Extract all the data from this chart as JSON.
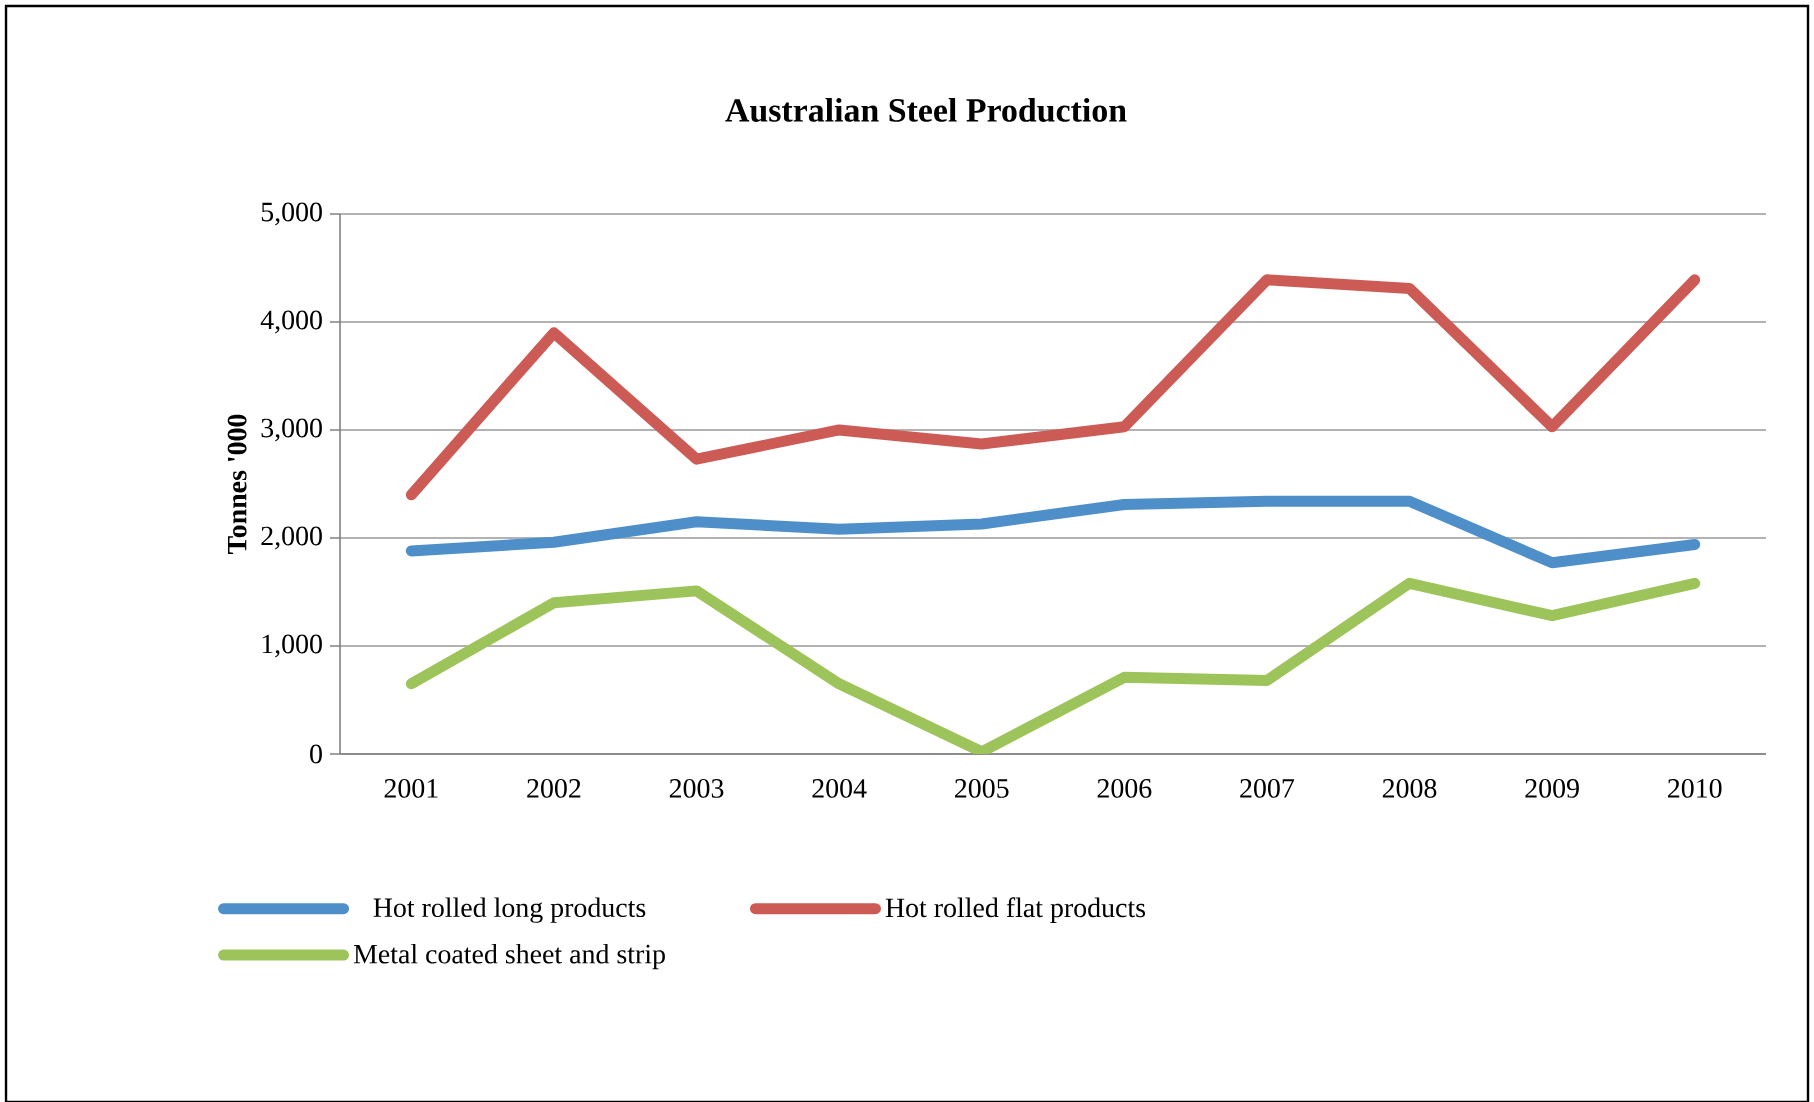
{
  "chart_data": {
    "type": "line",
    "title": "Australian Steel Production",
    "ylabel": "Tonnes '000",
    "categories": [
      "2001",
      "2002",
      "2003",
      "2004",
      "2005",
      "2006",
      "2007",
      "2008",
      "2009",
      "2010"
    ],
    "series": [
      {
        "name": "Hot rolled long products",
        "color": "#4f8fc9",
        "values": [
          1880,
          1960,
          2150,
          2080,
          2130,
          2310,
          2340,
          2340,
          1770,
          1940
        ]
      },
      {
        "name": "Hot rolled flat products",
        "color": "#cd5b55",
        "values": [
          2400,
          3900,
          2730,
          3000,
          2870,
          3030,
          4390,
          4310,
          3030,
          4390
        ]
      },
      {
        "name": "Metal coated sheet and strip",
        "color": "#9dc45a",
        "values": [
          650,
          1400,
          1510,
          650,
          20,
          710,
          680,
          1580,
          1280,
          1580
        ]
      }
    ],
    "ylim": [
      0,
      5000
    ],
    "yticks": [
      0,
      {
        "value": 1000,
        "label": "1,000"
      },
      {
        "value": 2000,
        "label": "2,000"
      },
      {
        "value": 3000,
        "label": "3,000"
      },
      {
        "value": 4000,
        "label": "4,000"
      },
      {
        "value": 5000,
        "label": "5,000"
      }
    ],
    "grid": "y",
    "legend": "bottom",
    "marker": "none",
    "line_style": "solid"
  }
}
